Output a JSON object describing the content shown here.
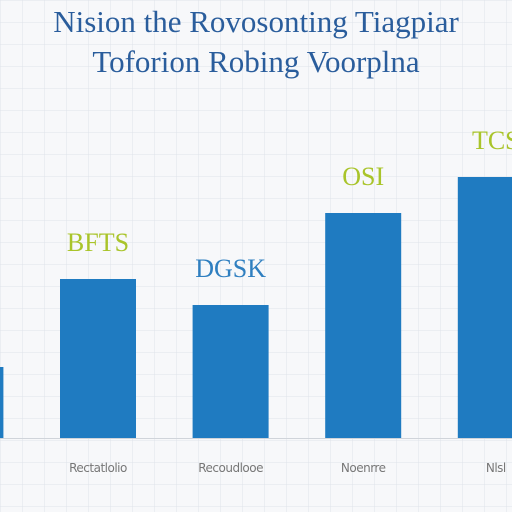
{
  "chart_data": {
    "type": "bar",
    "title": "Nision the Rovosonting Tiagpiar",
    "subtitle": "Toforion Robing Voorplna",
    "categories": [
      null,
      "Rectatlolio",
      "Recoudlooe",
      "Noenrre",
      "Nlsl"
    ],
    "values": [
      71,
      159,
      133,
      225,
      261
    ],
    "bar_labels": [
      null,
      "BFTS",
      "DGSK",
      "OSI",
      "TCS"
    ],
    "bar_label_colors": [
      null,
      "#a9c42a",
      "#2f7fc0",
      "#a9c42a",
      "#a9c42a"
    ],
    "color": "#1f7bc1",
    "ylim": [
      0,
      300
    ],
    "grid": true
  }
}
